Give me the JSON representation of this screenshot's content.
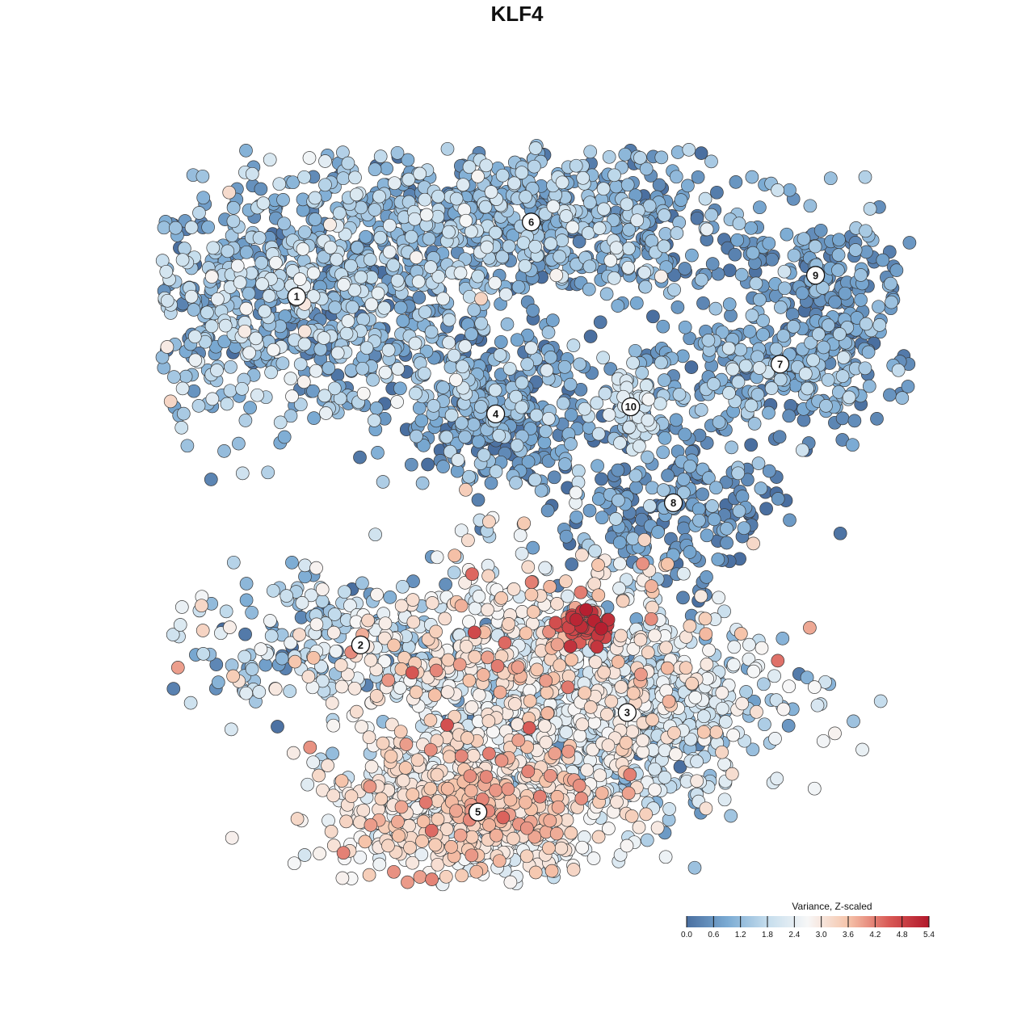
{
  "title": "KLF4",
  "chart_data": {
    "type": "scatter",
    "title": "KLF4",
    "xlabel": "",
    "ylabel": "",
    "grid": false,
    "colorbar": {
      "title": "Variance, Z-scaled",
      "placement": "bottom-right",
      "ticks": [
        "0.0",
        "0.6",
        "1.2",
        "1.8",
        "2.4",
        "3.0",
        "3.6",
        "4.2",
        "4.8",
        "5.4"
      ],
      "range": [
        0,
        5.4
      ],
      "colors": [
        "#4a6fa0",
        "#7aaad3",
        "#c5dded",
        "#f7f7f7",
        "#f6c4aa",
        "#d95a56",
        "#b2182b"
      ]
    },
    "clusters": [
      {
        "label": "1",
        "x": -6.2,
        "y": 6.2,
        "sx": 3.0,
        "sy": 1.8,
        "n": 900,
        "mean": 1.2,
        "sd": 0.7
      },
      {
        "label": "2",
        "x": -4.4,
        "y": -3.6,
        "sx": 2.8,
        "sy": 0.9,
        "n": 260,
        "mean": 1.6,
        "sd": 0.9
      },
      {
        "label": "3",
        "x": 3.1,
        "y": -5.5,
        "sx": 2.4,
        "sy": 1.3,
        "n": 650,
        "mean": 1.9,
        "sd": 0.7
      },
      {
        "label": "4",
        "x": -0.6,
        "y": 2.9,
        "sx": 1.3,
        "sy": 1.1,
        "n": 330,
        "mean": 0.7,
        "sd": 0.6
      },
      {
        "label": "5",
        "x": -1.1,
        "y": -8.3,
        "sx": 1.9,
        "sy": 1.0,
        "n": 780,
        "mean": 2.8,
        "sd": 0.6
      },
      {
        "label": "6",
        "x": 0.4,
        "y": 8.3,
        "sx": 3.0,
        "sy": 1.1,
        "n": 650,
        "mean": 1.0,
        "sd": 0.6
      },
      {
        "label": "7",
        "x": 7.4,
        "y": 4.3,
        "sx": 2.2,
        "sy": 0.9,
        "n": 330,
        "mean": 0.9,
        "sd": 0.5
      },
      {
        "label": "8",
        "x": 4.4,
        "y": 0.4,
        "sx": 1.5,
        "sy": 1.2,
        "n": 230,
        "mean": 0.5,
        "sd": 0.5
      },
      {
        "label": "9",
        "x": 8.4,
        "y": 6.8,
        "sx": 1.4,
        "sy": 0.8,
        "n": 160,
        "mean": 0.6,
        "sd": 0.4
      },
      {
        "label": "10",
        "x": 3.2,
        "y": 3.1,
        "sx": 0.4,
        "sy": 0.6,
        "n": 60,
        "mean": 1.9,
        "sd": 0.3
      },
      {
        "label": "",
        "x": 1.8,
        "y": -3.0,
        "sx": 0.4,
        "sy": 0.25,
        "n": 45,
        "mean": 4.8,
        "sd": 0.3
      },
      {
        "label": "",
        "x": 0.2,
        "y": -4.0,
        "sx": 2.6,
        "sy": 1.6,
        "n": 500,
        "mean": 2.7,
        "sd": 0.7
      }
    ],
    "x_range": [
      -12,
      12
    ],
    "y_range": [
      -12,
      12
    ]
  }
}
